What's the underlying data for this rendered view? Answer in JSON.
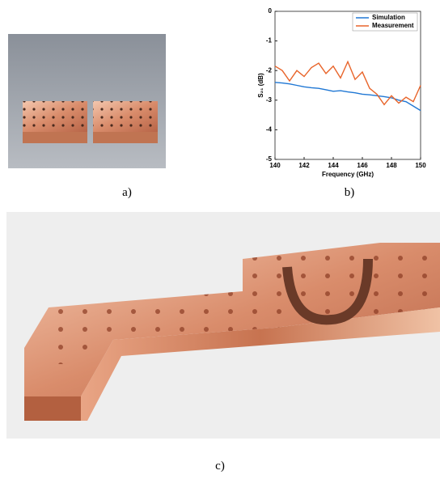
{
  "panel_labels": [
    "a)",
    "b)",
    "c)"
  ],
  "chart_data": {
    "type": "line",
    "x_label": "Frequency (GHz)",
    "y_label": "S₂₁ (dB)",
    "x": [
      140,
      140.5,
      141,
      141.5,
      142,
      142.5,
      143,
      143.5,
      144,
      144.5,
      145,
      145.5,
      146,
      146.5,
      147,
      147.5,
      148,
      148.5,
      149,
      149.5,
      150
    ],
    "series": [
      {
        "name": "Simulation",
        "color": "#1f77d4",
        "values": [
          -2.4,
          -2.42,
          -2.45,
          -2.5,
          -2.55,
          -2.58,
          -2.6,
          -2.65,
          -2.7,
          -2.68,
          -2.72,
          -2.75,
          -2.8,
          -2.82,
          -2.85,
          -2.88,
          -2.92,
          -3.0,
          -3.05,
          -3.2,
          -3.35
        ]
      },
      {
        "name": "Measurement",
        "color": "#e8642a",
        "values": [
          -1.85,
          -2.0,
          -2.35,
          -2.0,
          -2.2,
          -1.9,
          -1.75,
          -2.1,
          -1.85,
          -2.25,
          -1.7,
          -2.3,
          -2.05,
          -2.6,
          -2.8,
          -3.15,
          -2.85,
          -3.1,
          -2.9,
          -3.05,
          -2.5
        ]
      }
    ],
    "xlim": [
      140,
      150
    ],
    "ylim": [
      -5,
      0
    ],
    "xticks": [
      140,
      142,
      144,
      146,
      148,
      150
    ],
    "yticks": [
      0,
      -1,
      -2,
      -3,
      -4,
      -5
    ],
    "legend": "upper right"
  }
}
